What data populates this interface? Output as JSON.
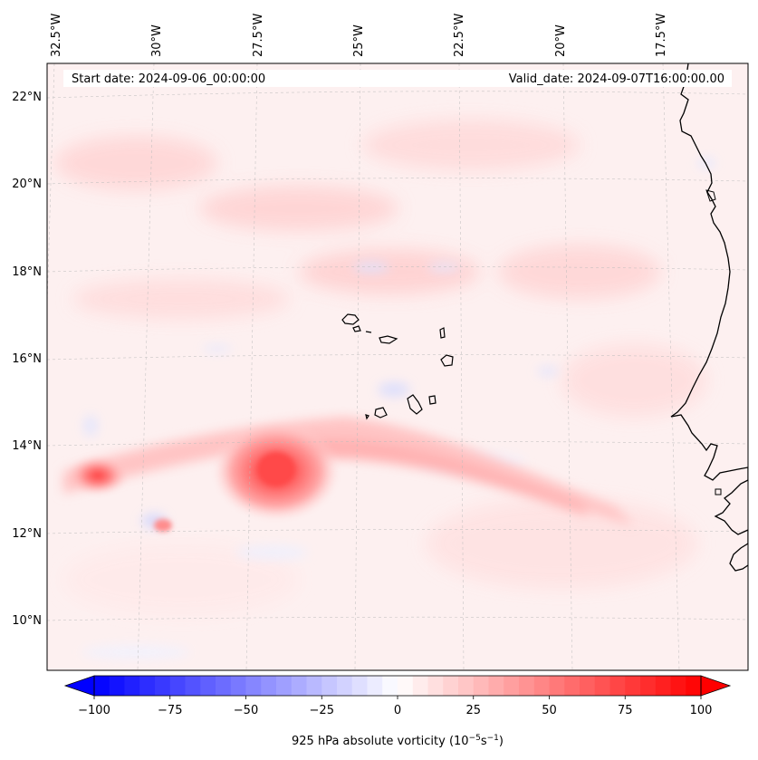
{
  "header": {
    "start_date": "Start date: 2024-09-06_00:00:00",
    "valid_date": "Valid_date: 2024-09-07T16:00:00.00"
  },
  "map": {
    "lon_labels": [
      "32.5°W",
      "30°W",
      "27.5°W",
      "25°W",
      "22.5°W",
      "20°W",
      "17.5°W"
    ],
    "lat_labels": [
      "22°N",
      "20°N",
      "18°N",
      "16°N",
      "14°N",
      "12°N",
      "10°N"
    ],
    "field": "925 hPa absolute vorticity",
    "features": [
      "cyclonic-vortex-west",
      "cyclonic-vortex-central",
      "cape-verde-islands",
      "west-african-coastline"
    ]
  },
  "colorbar": {
    "label_main": "925 hPa absolute vorticity (10",
    "label_exp1": "−5",
    "label_mid": "s",
    "label_exp2": "−1",
    "label_end": ")",
    "ticks": [
      "−100",
      "−75",
      "−50",
      "−25",
      "0",
      "25",
      "50",
      "75",
      "100"
    ],
    "min": -100,
    "max": 100,
    "colormap": "bwr",
    "extend": "both"
  },
  "colors": {
    "negative": "#0000ff",
    "neutral": "#ffffff",
    "positive": "#ff0000",
    "coastline": "#000000",
    "grid": "#bbbbbb"
  }
}
